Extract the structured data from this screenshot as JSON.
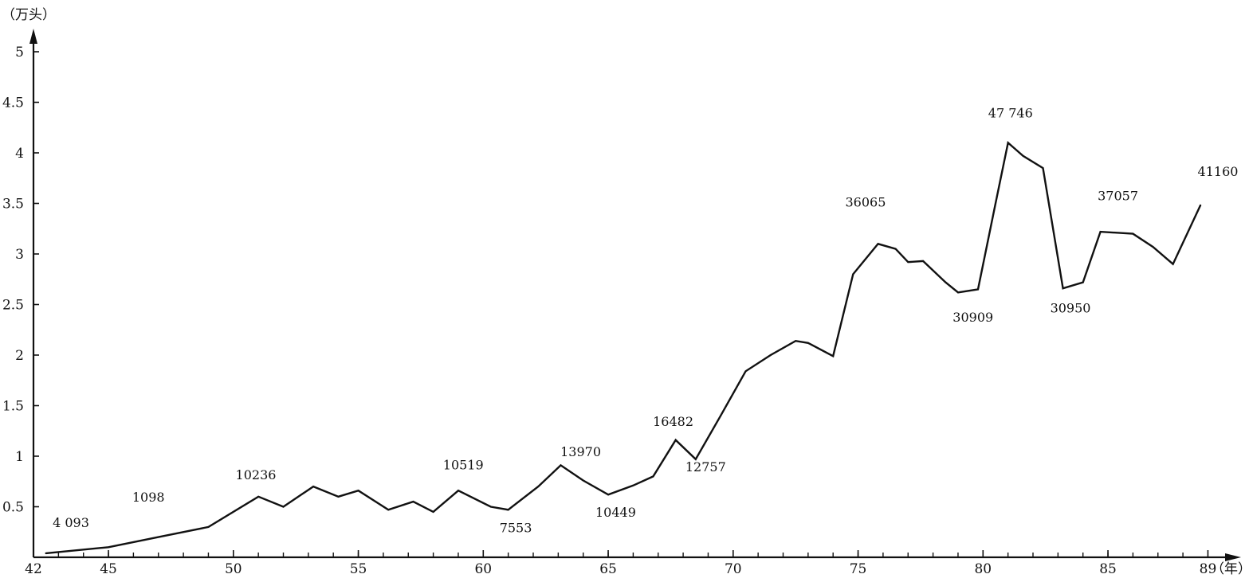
{
  "chart_data": {
    "type": "line",
    "y_unit_label": "（万头）",
    "x_unit_label": "（年）",
    "x_ticks": [
      {
        "value": 42,
        "label": "42"
      },
      {
        "value": 45,
        "label": "45"
      },
      {
        "value": 50,
        "label": "50"
      },
      {
        "value": 55,
        "label": "55"
      },
      {
        "value": 60,
        "label": "60"
      },
      {
        "value": 65,
        "label": "65"
      },
      {
        "value": 70,
        "label": "70"
      },
      {
        "value": 75,
        "label": "75"
      },
      {
        "value": 80,
        "label": "80"
      },
      {
        "value": 85,
        "label": "85"
      },
      {
        "value": 89,
        "label": "89"
      }
    ],
    "y_ticks": [
      {
        "value": 0.5,
        "label": "0.5"
      },
      {
        "value": 1,
        "label": "1"
      },
      {
        "value": 1.5,
        "label": "1.5"
      },
      {
        "value": 2,
        "label": "2"
      },
      {
        "value": 2.5,
        "label": "2.5"
      },
      {
        "value": 3,
        "label": "3"
      },
      {
        "value": 3.5,
        "label": "3.5"
      },
      {
        "value": 4,
        "label": "4"
      },
      {
        "value": 4.5,
        "label": "4.5"
      },
      {
        "value": 5,
        "label": "5"
      }
    ],
    "xlim": [
      42,
      89
    ],
    "ylim": [
      0,
      5.2
    ],
    "series": [
      {
        "x": [
          42.5,
          45,
          47,
          49,
          51,
          52,
          53.2,
          54.2,
          55,
          56.2,
          57.2,
          58,
          59,
          60.3,
          61,
          62.2,
          63.1,
          64,
          65,
          66,
          66.8,
          67.7,
          68.5,
          69.5,
          70.5,
          71.5,
          72.5,
          73,
          74,
          74.8,
          75.8,
          76.5,
          77,
          77.6,
          78.5,
          79,
          79.8,
          80.5,
          81,
          81.6,
          82.4,
          83.2,
          84,
          84.7,
          86,
          86.8,
          87.6,
          88.7
        ],
        "y": [
          0.04,
          0.1,
          0.2,
          0.3,
          0.6,
          0.5,
          0.7,
          0.6,
          0.66,
          0.47,
          0.55,
          0.45,
          0.66,
          0.5,
          0.47,
          0.7,
          0.91,
          0.76,
          0.62,
          0.71,
          0.8,
          1.16,
          0.97,
          1.4,
          1.84,
          2.0,
          2.14,
          2.12,
          1.99,
          2.8,
          3.1,
          3.05,
          2.92,
          2.93,
          2.72,
          2.62,
          2.65,
          3.5,
          4.1,
          3.97,
          3.85,
          2.66,
          2.72,
          3.22,
          3.2,
          3.07,
          2.9,
          3.48
        ]
      }
    ],
    "annotations": [
      {
        "text": "4 093",
        "x": 43.5,
        "y": 0.3
      },
      {
        "text": "1098",
        "x": 46.6,
        "y": 0.55
      },
      {
        "text": "10236",
        "x": 50.9,
        "y": 0.77
      },
      {
        "text": "10519",
        "x": 59.2,
        "y": 0.87
      },
      {
        "text": "7553",
        "x": 61.3,
        "y": 0.25
      },
      {
        "text": "13970",
        "x": 63.9,
        "y": 1.0
      },
      {
        "text": "10449",
        "x": 65.3,
        "y": 0.4
      },
      {
        "text": "16482",
        "x": 67.6,
        "y": 1.3
      },
      {
        "text": "12757",
        "x": 68.9,
        "y": 0.85
      },
      {
        "text": "36065",
        "x": 75.3,
        "y": 3.47
      },
      {
        "text": "30909",
        "x": 79.6,
        "y": 2.33
      },
      {
        "text": "47 746",
        "x": 81.1,
        "y": 4.35
      },
      {
        "text": "30950",
        "x": 83.5,
        "y": 2.42
      },
      {
        "text": "37057",
        "x": 85.4,
        "y": 3.53
      },
      {
        "text": "41160",
        "x": 89.4,
        "y": 3.77
      }
    ],
    "grid": false
  }
}
